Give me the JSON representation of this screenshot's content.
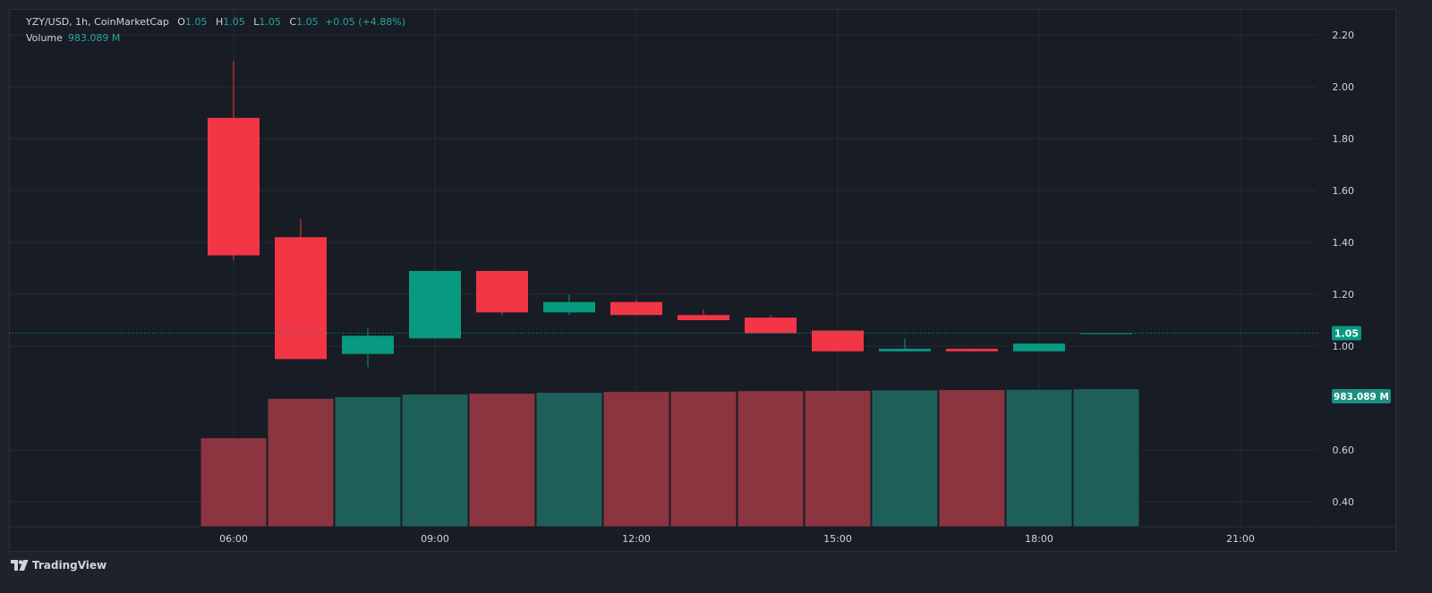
{
  "header": {
    "symbol": "YZY/USD, 1h, CoinMarketCap",
    "o_label": "O",
    "o_value": "1.05",
    "h_label": "H",
    "h_value": "1.05",
    "l_label": "L",
    "l_value": "1.05",
    "c_label": "C",
    "c_value": "1.05",
    "change": "+0.05 (+4.88%)",
    "volume_label": "Volume",
    "volume_value": "983.089 M"
  },
  "price_badge": "1.05",
  "volume_badge": "983.089 M",
  "brand": "TradingView",
  "colors": {
    "up": "#089981",
    "down": "#f23645",
    "vol_up": "#1e5f5a",
    "vol_down": "#8a3540",
    "grid": "#262a35",
    "text": "#d1d4dc",
    "bg": "#181c25"
  },
  "chart_data": {
    "type": "candlestick",
    "ylim": [
      0.31,
      2.27
    ],
    "y_ticks": [
      "2.20",
      "2.00",
      "1.80",
      "1.60",
      "1.40",
      "1.20",
      "1.00",
      "0.60",
      "0.40"
    ],
    "x_ticks": [
      "06:00",
      "09:00",
      "12:00",
      "15:00",
      "18:00",
      "21:00"
    ],
    "x_tick_hours": [
      6,
      9,
      12,
      15,
      18,
      21
    ],
    "last_price": 1.05,
    "candles": [
      {
        "t": 6,
        "o": 1.88,
        "h": 2.1,
        "l": 1.33,
        "c": 1.35,
        "vol": 0.52
      },
      {
        "t": 7,
        "o": 1.42,
        "h": 1.49,
        "l": 0.95,
        "c": 0.95,
        "vol": 0.75
      },
      {
        "t": 8,
        "o": 0.97,
        "h": 1.07,
        "l": 0.92,
        "c": 1.04,
        "vol": 0.76
      },
      {
        "t": 9,
        "o": 1.03,
        "h": 1.29,
        "l": 1.03,
        "c": 1.29,
        "vol": 0.775
      },
      {
        "t": 10,
        "o": 1.29,
        "h": 1.29,
        "l": 1.12,
        "c": 1.13,
        "vol": 0.78
      },
      {
        "t": 11,
        "o": 1.13,
        "h": 1.2,
        "l": 1.12,
        "c": 1.17,
        "vol": 0.785
      },
      {
        "t": 12,
        "o": 1.17,
        "h": 1.18,
        "l": 1.12,
        "c": 1.12,
        "vol": 0.79
      },
      {
        "t": 13,
        "o": 1.12,
        "h": 1.14,
        "l": 1.1,
        "c": 1.1,
        "vol": 0.792
      },
      {
        "t": 14,
        "o": 1.11,
        "h": 1.12,
        "l": 1.05,
        "c": 1.05,
        "vol": 0.795
      },
      {
        "t": 15,
        "o": 1.06,
        "h": 1.06,
        "l": 0.98,
        "c": 0.98,
        "vol": 0.797
      },
      {
        "t": 16,
        "o": 0.98,
        "h": 1.03,
        "l": 0.98,
        "c": 0.99,
        "vol": 0.799
      },
      {
        "t": 17,
        "o": 0.99,
        "h": 0.99,
        "l": 0.98,
        "c": 0.98,
        "vol": 0.801
      },
      {
        "t": 18,
        "o": 0.98,
        "h": 1.01,
        "l": 0.98,
        "c": 1.01,
        "vol": 0.803
      },
      {
        "t": 19,
        "o": 1.05,
        "h": 1.05,
        "l": 1.05,
        "c": 1.05,
        "vol": 0.806
      }
    ]
  }
}
